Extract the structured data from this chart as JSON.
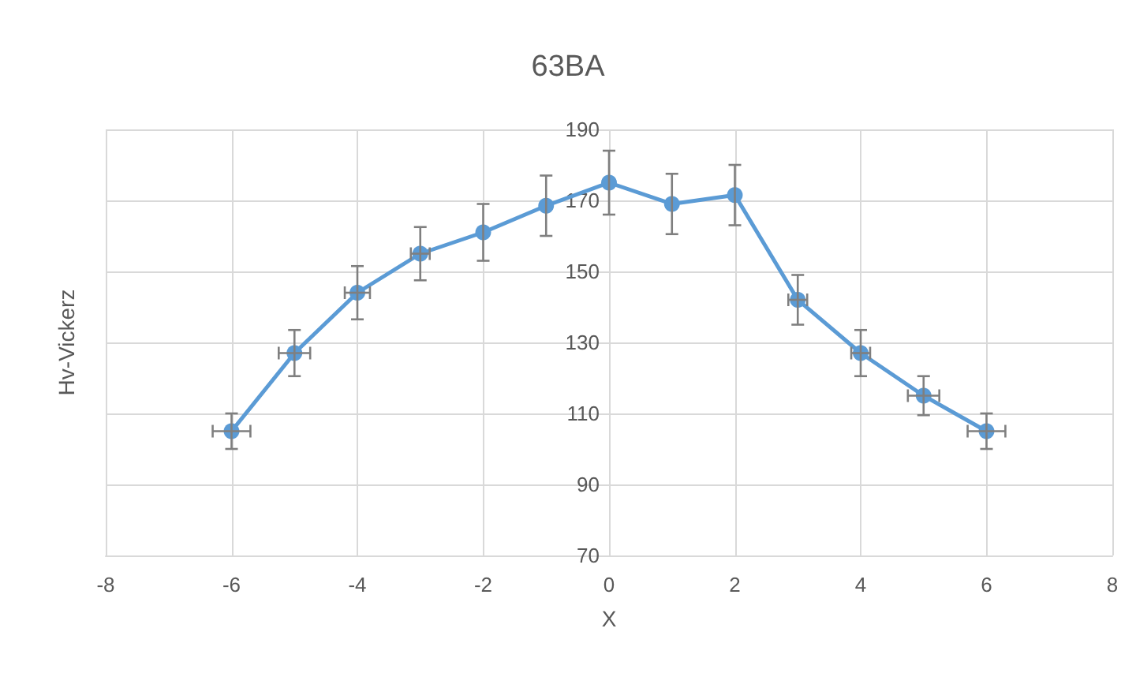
{
  "chart_data": {
    "type": "line",
    "title": "63BA",
    "xlabel": "X",
    "ylabel": "Hv-Vickerz",
    "x": [
      -6,
      -5,
      -4,
      -3,
      -2,
      -1,
      0,
      1,
      2,
      3,
      4,
      5,
      6
    ],
    "series": [
      {
        "color": "#5b9bd5",
        "values": [
          105,
          127,
          144,
          155,
          161,
          168.5,
          175,
          169,
          171.5,
          142,
          127,
          115,
          105
        ],
        "errors": [
          5,
          6.5,
          7.5,
          7.5,
          8,
          8.5,
          9,
          8.5,
          8.5,
          7,
          6.5,
          5.5,
          5
        ],
        "xerrors": [
          0.3,
          0.25,
          0.2,
          0.15,
          null,
          null,
          null,
          null,
          null,
          0.15,
          0.15,
          0.25,
          0.3
        ]
      }
    ],
    "xlim": [
      -8,
      8
    ],
    "xticks": [
      -8,
      -6,
      -4,
      -2,
      0,
      2,
      4,
      6,
      8
    ],
    "ylim": [
      70,
      190
    ],
    "yticks": [
      70,
      90,
      110,
      130,
      150,
      170,
      190
    ],
    "grid": true,
    "marker": "circle",
    "line_style": "solid"
  }
}
